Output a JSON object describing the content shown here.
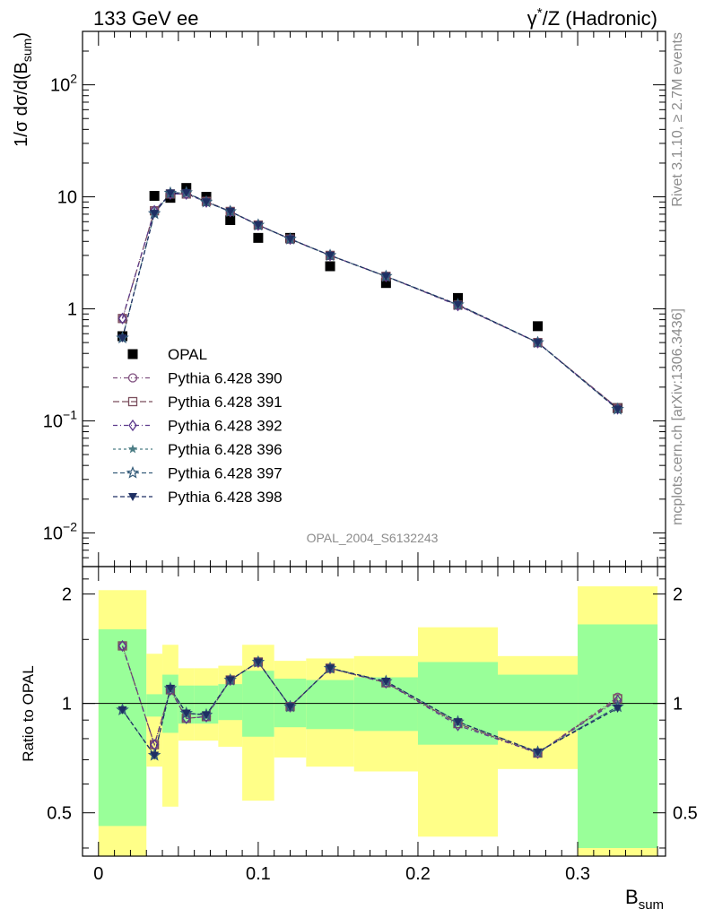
{
  "header": {
    "left": "133 GeV ee",
    "right_sup": "*",
    "right_pre": "γ",
    "right_post": "/Z (Hadronic)"
  },
  "side_labels": {
    "rivet": "Rivet 3.1.10, ≥ 2.7M events",
    "mcplots": "mcplots.cern.ch [arXiv:1306.3436]"
  },
  "analysis_id": "OPAL_2004_S6132243",
  "axes": {
    "ylabel_main": "1/σ dσ/d(B",
    "ylabel_main_sub": "sum",
    "ylabel_main_end": ")",
    "ylabel_ratio": "Ratio to OPAL",
    "xlabel": "B",
    "xlabel_sub": "sum"
  },
  "colors": {
    "band_inner": "#99ff99",
    "band_outer": "#ffff88",
    "data": "#000000",
    "s390": "#80507f",
    "s391": "#7a4d5c",
    "s392": "#5c3a8c",
    "s396": "#4b7d85",
    "s397": "#355c7a",
    "s398": "#1f2f63"
  },
  "chart_data": [
    {
      "type": "scatter",
      "panel": "main",
      "x_scale": "linear",
      "y_scale": "log",
      "xlim": [
        -0.01,
        0.355
      ],
      "ylim": [
        0.005,
        300
      ],
      "yticks": [
        {
          "v": 0.01,
          "base": "10",
          "exp": "−2"
        },
        {
          "v": 0.1,
          "base": "10",
          "exp": "−1"
        },
        {
          "v": 1,
          "base": "1",
          "exp": ""
        },
        {
          "v": 10,
          "base": "10",
          "exp": ""
        },
        {
          "v": 100,
          "base": "10",
          "exp": "2"
        }
      ],
      "x": [
        0.015,
        0.035,
        0.045,
        0.055,
        0.0675,
        0.0825,
        0.1,
        0.12,
        0.145,
        0.18,
        0.225,
        0.275,
        0.325
      ],
      "series": [
        {
          "name": "OPAL",
          "key": "data",
          "marker": "square-filled",
          "values": [
            0.57,
            10.2,
            9.8,
            12.0,
            10.0,
            6.2,
            4.3,
            4.3,
            2.4,
            1.7,
            1.25,
            0.7,
            0.13
          ]
        },
        {
          "name": "Pythia 6.428 390",
          "key": "s390",
          "marker": "circle-open",
          "dash": "5,3,1,3",
          "values": [
            0.82,
            7.5,
            10.6,
            10.7,
            9.1,
            7.4,
            5.6,
            4.2,
            3.0,
            1.95,
            1.08,
            0.5,
            0.13
          ]
        },
        {
          "name": "Pythia 6.428 391",
          "key": "s391",
          "marker": "square-open",
          "dash": "7,3",
          "values": [
            0.82,
            7.5,
            10.6,
            10.6,
            9.1,
            7.4,
            5.6,
            4.2,
            3.0,
            1.95,
            1.08,
            0.5,
            0.13
          ]
        },
        {
          "name": "Pythia 6.428 392",
          "key": "s392",
          "marker": "diamond-open",
          "dash": "5,3,1,3",
          "values": [
            0.82,
            7.5,
            10.6,
            10.6,
            9.0,
            7.4,
            5.6,
            4.2,
            3.0,
            1.95,
            1.07,
            0.5,
            0.128
          ]
        },
        {
          "name": "Pythia 6.428 396",
          "key": "s396",
          "marker": "star-filled",
          "dash": "3,3",
          "values": [
            0.55,
            7.1,
            10.8,
            10.9,
            9.0,
            7.4,
            5.6,
            4.2,
            3.0,
            1.95,
            1.09,
            0.5,
            0.127
          ]
        },
        {
          "name": "Pythia 6.428 397",
          "key": "s397",
          "marker": "star-open",
          "dash": "5,3",
          "values": [
            0.55,
            7.1,
            10.8,
            10.9,
            9.0,
            7.4,
            5.6,
            4.2,
            3.0,
            1.95,
            1.09,
            0.5,
            0.127
          ]
        },
        {
          "name": "Pythia 6.428 398",
          "key": "s398",
          "marker": "triangle-down-filled",
          "dash": "5,3",
          "values": [
            0.55,
            7.1,
            10.8,
            10.9,
            9.0,
            7.4,
            5.6,
            4.2,
            3.0,
            1.95,
            1.09,
            0.5,
            0.127
          ]
        }
      ]
    },
    {
      "type": "line",
      "panel": "ratio",
      "x_scale": "linear",
      "y_scale": "log",
      "xlim": [
        -0.01,
        0.355
      ],
      "ylim": [
        0.38,
        2.38
      ],
      "yticks": [
        0.5,
        1,
        2
      ],
      "xticks": [
        0,
        0.1,
        0.2,
        0.3
      ],
      "xlabel": "B_sum",
      "ylabel": "Ratio to OPAL",
      "reference_line": 1,
      "bands": {
        "edges": [
          0,
          0.03,
          0.04,
          0.05,
          0.06,
          0.075,
          0.09,
          0.11,
          0.13,
          0.16,
          0.2,
          0.25,
          0.3,
          0.35
        ],
        "inner_lo": [
          0.46,
          0.92,
          0.83,
          0.88,
          0.88,
          0.9,
          0.81,
          0.86,
          0.85,
          0.84,
          0.77,
          0.84,
          0.4
        ],
        "inner_hi": [
          1.6,
          1.06,
          1.2,
          1.12,
          1.12,
          1.13,
          1.23,
          1.17,
          1.16,
          1.18,
          1.3,
          1.2,
          1.65
        ],
        "outer_lo": [
          0.35,
          0.67,
          0.52,
          0.79,
          0.79,
          0.76,
          0.54,
          0.71,
          0.67,
          0.65,
          0.43,
          0.66,
          0.35
        ],
        "outer_hi": [
          2.05,
          1.37,
          1.45,
          1.25,
          1.25,
          1.27,
          1.45,
          1.31,
          1.33,
          1.35,
          1.62,
          1.35,
          2.1
        ]
      },
      "x": [
        0.015,
        0.035,
        0.045,
        0.055,
        0.0675,
        0.0825,
        0.1,
        0.12,
        0.145,
        0.18,
        0.225,
        0.275,
        0.325
      ],
      "series": [
        {
          "name": "Pythia 6.428 390",
          "key": "s390",
          "marker": "circle-open",
          "dash": "5,3,1,3",
          "values": [
            1.44,
            0.77,
            1.09,
            0.91,
            0.92,
            1.16,
            1.3,
            0.98,
            1.25,
            1.14,
            0.88,
            0.73,
            1.04
          ]
        },
        {
          "name": "Pythia 6.428 391",
          "key": "s391",
          "marker": "square-open",
          "dash": "7,3",
          "values": [
            1.44,
            0.77,
            1.09,
            0.91,
            0.92,
            1.16,
            1.3,
            0.98,
            1.25,
            1.14,
            0.88,
            0.73,
            1.03
          ]
        },
        {
          "name": "Pythia 6.428 392",
          "key": "s392",
          "marker": "diamond-open",
          "dash": "5,3,1,3",
          "values": [
            1.44,
            0.77,
            1.09,
            0.91,
            0.92,
            1.16,
            1.3,
            0.98,
            1.25,
            1.14,
            0.87,
            0.73,
            1.02
          ]
        },
        {
          "name": "Pythia 6.428 396",
          "key": "s396",
          "marker": "star-filled",
          "dash": "3,3",
          "values": [
            0.96,
            0.72,
            1.1,
            0.94,
            0.93,
            1.16,
            1.3,
            0.98,
            1.25,
            1.15,
            0.89,
            0.735,
            0.98
          ]
        },
        {
          "name": "Pythia 6.428 397",
          "key": "s397",
          "marker": "star-open",
          "dash": "5,3",
          "values": [
            0.96,
            0.72,
            1.1,
            0.94,
            0.93,
            1.16,
            1.3,
            0.98,
            1.25,
            1.15,
            0.89,
            0.735,
            0.98
          ]
        },
        {
          "name": "Pythia 6.428 398",
          "key": "s398",
          "marker": "triangle-down-filled",
          "dash": "5,3",
          "values": [
            0.96,
            0.72,
            1.1,
            0.94,
            0.93,
            1.16,
            1.3,
            0.98,
            1.25,
            1.15,
            0.89,
            0.735,
            0.97
          ]
        }
      ]
    }
  ]
}
